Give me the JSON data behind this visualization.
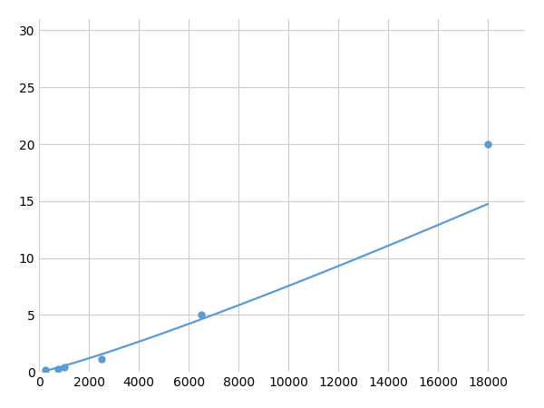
{
  "x_data": [
    250,
    750,
    1000,
    2500,
    6500,
    18000
  ],
  "y_data": [
    0.2,
    0.3,
    0.4,
    1.1,
    5.0,
    20.0
  ],
  "line_color": "#5b9bd5",
  "marker_color": "#5b9bd5",
  "marker_size": 5,
  "line_width": 1.6,
  "xlim": [
    0,
    19500
  ],
  "ylim": [
    0,
    31
  ],
  "xticks": [
    0,
    2000,
    4000,
    6000,
    8000,
    10000,
    12000,
    14000,
    16000,
    18000
  ],
  "yticks": [
    0,
    5,
    10,
    15,
    20,
    25,
    30
  ],
  "grid_color": "#cccccc",
  "background_color": "#ffffff",
  "tick_labelsize": 10
}
